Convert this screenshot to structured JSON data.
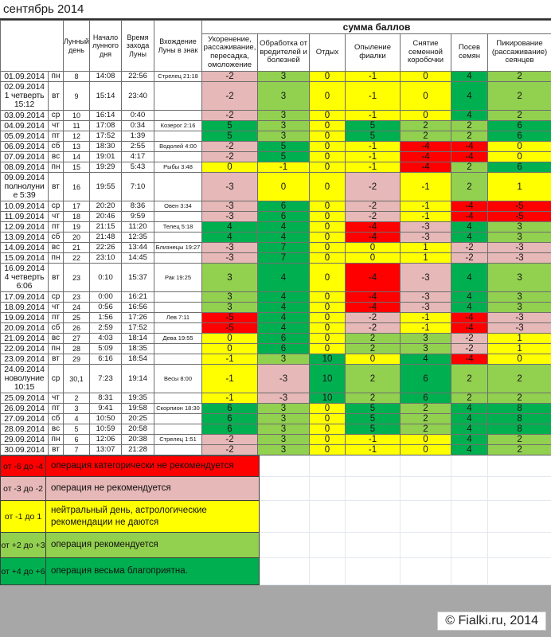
{
  "title": "сентябрь 2014",
  "header": {
    "sum_label": "сумма баллов",
    "left_columns": [
      "Лунный день",
      "Начало лунного дня",
      "Время захода Луны",
      "Вхождение Луны в знак"
    ],
    "score_columns": [
      "Укоренение, рассаживание, пересадка, омоложение",
      "Обработка от вредителей и болезней",
      "Отдых",
      "Опыление фиалки",
      "Снятие семенной коробочки",
      "Посев семян",
      "Пикирование (рассаживание) сеянцев"
    ]
  },
  "rows": [
    {
      "date_lines": [
        "01.09.2014"
      ],
      "day": "пн",
      "lunar": "8",
      "start": "14:08",
      "set": "22:56",
      "sign": "Стрелец 21:18",
      "scores": [
        -2,
        3,
        0,
        -1,
        0,
        4,
        2
      ]
    },
    {
      "date_lines": [
        "02.09.2014",
        "1 четверть",
        "15:12"
      ],
      "day": "вт",
      "lunar": "9",
      "start": "15:14",
      "set": "23:40",
      "sign": "",
      "scores": [
        -2,
        3,
        0,
        -1,
        0,
        4,
        2
      ]
    },
    {
      "date_lines": [
        "03.09.2014"
      ],
      "day": "ср",
      "lunar": "10",
      "start": "16:14",
      "set": "0:40",
      "sign": "",
      "scores": [
        -2,
        3,
        0,
        -1,
        0,
        4,
        2
      ]
    },
    {
      "date_lines": [
        "04.09.2014"
      ],
      "day": "чт",
      "lunar": "11",
      "start": "17:08",
      "set": "0:34",
      "sign": "Козерог 2:16",
      "scores": [
        5,
        3,
        0,
        5,
        2,
        2,
        6
      ]
    },
    {
      "date_lines": [
        "05.09.2014"
      ],
      "day": "пт",
      "lunar": "12",
      "start": "17:52",
      "set": "1:39",
      "sign": "",
      "scores": [
        5,
        3,
        0,
        5,
        2,
        2,
        6
      ]
    },
    {
      "date_lines": [
        "06.09.2014"
      ],
      "day": "сб",
      "lunar": "13",
      "start": "18:30",
      "set": "2:55",
      "sign": "Водолей 4:00",
      "scores": [
        -2,
        5,
        0,
        -1,
        -4,
        -4,
        0
      ]
    },
    {
      "date_lines": [
        "07.09.2014"
      ],
      "day": "вс",
      "lunar": "14",
      "start": "19:01",
      "set": "4:17",
      "sign": "",
      "scores": [
        -2,
        5,
        0,
        -1,
        -4,
        -4,
        0
      ]
    },
    {
      "date_lines": [
        "08.09.2014"
      ],
      "day": "пн",
      "lunar": "15",
      "start": "19:29",
      "set": "5:43",
      "sign": "Рыбы 3:48",
      "scores": [
        0,
        -1,
        0,
        -1,
        -4,
        2,
        6
      ]
    },
    {
      "date_lines": [
        "09.09.2014",
        "полнолуни",
        "е 5:39"
      ],
      "day": "вт",
      "lunar": "16",
      "start": "19:55",
      "set": "7:10",
      "sign": "",
      "scores": [
        -3,
        0,
        0,
        -2,
        -1,
        2,
        1
      ]
    },
    {
      "date_lines": [
        "10.09.2014"
      ],
      "day": "ср",
      "lunar": "17",
      "start": "20:20",
      "set": "8:36",
      "sign": "Овен 3:34",
      "scores": [
        -3,
        6,
        0,
        -2,
        -1,
        -4,
        -5
      ]
    },
    {
      "date_lines": [
        "11.09.2014"
      ],
      "day": "чт",
      "lunar": "18",
      "start": "20:46",
      "set": "9:59",
      "sign": "",
      "scores": [
        -3,
        6,
        0,
        -2,
        -1,
        -4,
        -5
      ]
    },
    {
      "date_lines": [
        "12.09.2014"
      ],
      "day": "пт",
      "lunar": "19",
      "start": "21:15",
      "set": "11:20",
      "sign": "Телец 5:18",
      "scores": [
        4,
        4,
        0,
        -4,
        -3,
        4,
        3
      ]
    },
    {
      "date_lines": [
        "13.09.2014"
      ],
      "day": "сб",
      "lunar": "20",
      "start": "21:48",
      "set": "12:35",
      "sign": "",
      "scores": [
        4,
        4,
        0,
        -4,
        -3,
        4,
        3
      ]
    },
    {
      "date_lines": [
        "14.09.2014"
      ],
      "day": "вс",
      "lunar": "21",
      "start": "22:26",
      "set": "13:44",
      "sign": "Близнецы 19:27",
      "scores": [
        -3,
        7,
        0,
        0,
        1,
        -2,
        -3
      ]
    },
    {
      "date_lines": [
        "15.09.2014"
      ],
      "day": "пн",
      "lunar": "22",
      "start": "23:10",
      "set": "14:45",
      "sign": "",
      "scores": [
        -3,
        7,
        0,
        0,
        1,
        -2,
        -3
      ]
    },
    {
      "date_lines": [
        "16.09.2014",
        "4 четверть",
        "6:06"
      ],
      "day": "вт",
      "lunar": "23",
      "start": "0:10",
      "set": "15:37",
      "sign": "Рак 19:25",
      "scores": [
        3,
        4,
        0,
        -4,
        -3,
        4,
        3
      ]
    },
    {
      "date_lines": [
        "17.09.2014"
      ],
      "day": "ср",
      "lunar": "23",
      "start": "0:00",
      "set": "16:21",
      "sign": "",
      "scores": [
        3,
        4,
        0,
        -4,
        -3,
        4,
        3
      ]
    },
    {
      "date_lines": [
        "18.09.2014"
      ],
      "day": "чт",
      "lunar": "24",
      "start": "0:56",
      "set": "16:56",
      "sign": "",
      "scores": [
        3,
        4,
        0,
        -4,
        -3,
        4,
        3
      ]
    },
    {
      "date_lines": [
        "19.09.2014"
      ],
      "day": "пт",
      "lunar": "25",
      "start": "1:56",
      "set": "17:26",
      "sign": "Лев 7:11",
      "scores": [
        -5,
        4,
        0,
        -2,
        -1,
        -4,
        -3
      ]
    },
    {
      "date_lines": [
        "20.09.2014"
      ],
      "day": "сб",
      "lunar": "26",
      "start": "2:59",
      "set": "17:52",
      "sign": "",
      "scores": [
        -5,
        4,
        0,
        -2,
        -1,
        -4,
        -3
      ]
    },
    {
      "date_lines": [
        "21.09.2014"
      ],
      "day": "вс",
      "lunar": "27",
      "start": "4:03",
      "set": "18:14",
      "sign": "Дева 19:55",
      "scores": [
        0,
        6,
        0,
        2,
        3,
        -2,
        1
      ]
    },
    {
      "date_lines": [
        "22.09.2014"
      ],
      "day": "пн",
      "lunar": "28",
      "start": "5:09",
      "set": "18:35",
      "sign": "",
      "scores": [
        0,
        6,
        0,
        2,
        3,
        -2,
        1
      ]
    },
    {
      "date_lines": [
        "23.09.2014"
      ],
      "day": "вт",
      "lunar": "29",
      "start": "6:16",
      "set": "18:54",
      "sign": "",
      "scores": [
        -1,
        3,
        10,
        0,
        4,
        -4,
        0
      ]
    },
    {
      "date_lines": [
        "24.09.2014",
        "новолуние",
        "10:15"
      ],
      "day": "ср",
      "lunar": "30,1",
      "start": "7:23",
      "set": "19:14",
      "sign": "Весы 8:00",
      "scores": [
        -1,
        -3,
        10,
        2,
        6,
        2,
        2
      ]
    },
    {
      "date_lines": [
        "25.09.2014"
      ],
      "day": "чт",
      "lunar": "2",
      "start": "8:31",
      "set": "19:35",
      "sign": "",
      "scores": [
        -1,
        -3,
        10,
        2,
        6,
        2,
        2
      ]
    },
    {
      "date_lines": [
        "26.09.2014"
      ],
      "day": "пт",
      "lunar": "3",
      "start": "9:41",
      "set": "19:58",
      "sign": "Скорпион 18:30",
      "scores": [
        6,
        3,
        0,
        5,
        2,
        4,
        8
      ]
    },
    {
      "date_lines": [
        "27.09.2014"
      ],
      "day": "сб",
      "lunar": "4",
      "start": "10:50",
      "set": "20:25",
      "sign": "",
      "scores": [
        6,
        3,
        0,
        5,
        2,
        4,
        8
      ]
    },
    {
      "date_lines": [
        "28.09.2014"
      ],
      "day": "вс",
      "lunar": "5",
      "start": "10:59",
      "set": "20:58",
      "sign": "",
      "scores": [
        6,
        3,
        0,
        5,
        2,
        4,
        8
      ]
    },
    {
      "date_lines": [
        "29.09.2014"
      ],
      "day": "пн",
      "lunar": "6",
      "start": "12:06",
      "set": "20:38",
      "sign": "Стрелец 1:51",
      "scores": [
        -2,
        3,
        0,
        -1,
        0,
        4,
        2
      ]
    },
    {
      "date_lines": [
        "30.09.2014"
      ],
      "day": "вт",
      "lunar": "7",
      "start": "13:07",
      "set": "21:28",
      "sign": "",
      "scores": [
        -2,
        3,
        0,
        -1,
        0,
        4,
        2
      ]
    }
  ],
  "legend": [
    {
      "range": "от -6 до -4",
      "text": "операция категорически не рекомендуется",
      "color": "#ff0000"
    },
    {
      "range": "от -3 до -2",
      "text": "операция не рекомендуется",
      "color": "#e6b8b7"
    },
    {
      "range": "от -1 до 1",
      "text": "нейтральный день, астрологические рекомендации не даются",
      "color": "#ffff00"
    },
    {
      "range": "от +2 до +3",
      "text": "операция рекомендуется",
      "color": "#92d050"
    },
    {
      "range": "от +4 до +6",
      "text": "операция весьма благоприятна.",
      "color": "#00b050"
    }
  ],
  "score_colors": {
    "red": "#ff0000",
    "pink": "#e6b8b7",
    "yellow": "#ffff00",
    "lightgreen": "#92d050",
    "green": "#00b050"
  },
  "footer": {
    "copyright": "© Fialki.ru, 2014"
  }
}
